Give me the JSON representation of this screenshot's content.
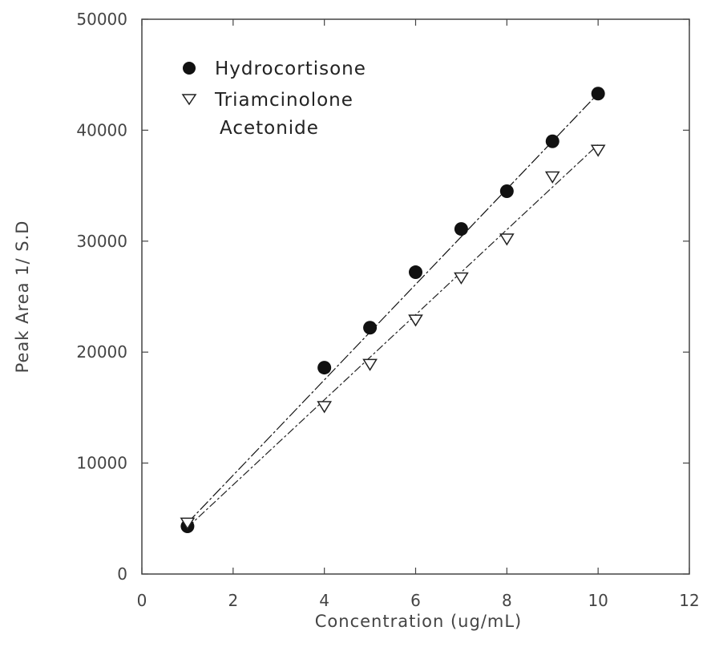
{
  "chart_data": {
    "type": "scatter",
    "xlabel": "Concentration (ug/mL)",
    "ylabel": "Peak Area 1/ S.D",
    "xlim": [
      0,
      12
    ],
    "ylim": [
      0,
      50000
    ],
    "x_ticks": [
      0,
      2,
      4,
      6,
      8,
      10,
      12
    ],
    "y_ticks": [
      0,
      10000,
      20000,
      30000,
      40000,
      50000
    ],
    "x_tick_labels": [
      "0",
      "2",
      "4",
      "6",
      "8",
      "10",
      "12"
    ],
    "y_tick_labels": [
      "0",
      "10000",
      "20000",
      "30000",
      "40000",
      "50000"
    ],
    "legend_position": "top-left",
    "series": [
      {
        "name": "Hydrocortisone",
        "marker": "filled-circle",
        "color": "#111111",
        "x": [
          1,
          4,
          5,
          6,
          7,
          8,
          9,
          10
        ],
        "y": [
          4300,
          18600,
          22200,
          27200,
          31100,
          34500,
          39000,
          43300
        ],
        "fit_line": {
          "x": [
            1,
            10
          ],
          "y": [
            4600,
            43300
          ]
        }
      },
      {
        "name": "Triamcinolone Acetonide",
        "legend_lines": [
          "Triamcinolone",
          "Acetonide"
        ],
        "marker": "open-down-triangle",
        "color": "#222222",
        "x": [
          1,
          4,
          5,
          6,
          7,
          8,
          9,
          10
        ],
        "y": [
          4600,
          15100,
          18900,
          22900,
          26700,
          30200,
          35800,
          38200
        ],
        "fit_line": {
          "x": [
            1,
            10
          ],
          "y": [
            4200,
            38700
          ]
        }
      }
    ]
  }
}
